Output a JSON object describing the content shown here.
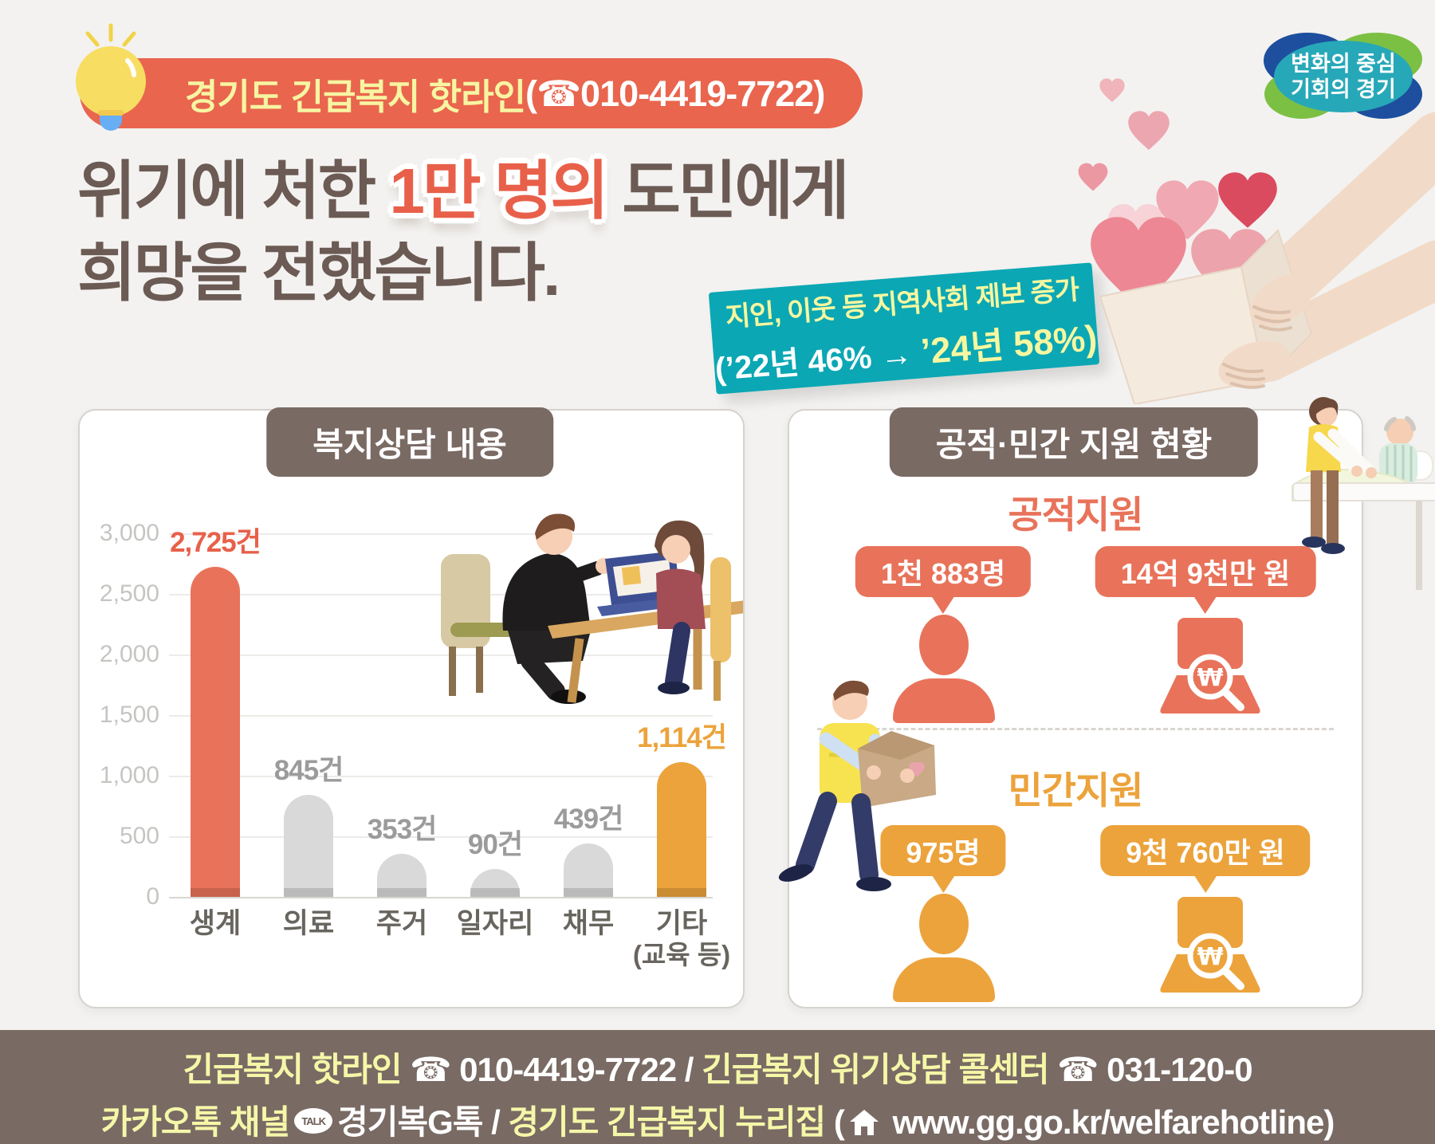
{
  "page": {
    "background": "#f3f2f0",
    "accent_red": "#e8604a",
    "accent_coral": "#e8735a",
    "accent_amber": "#eca33c",
    "teal": "#0ba7b4",
    "brown": "#7a6a64"
  },
  "badge": {
    "title": "경기도 긴급복지 핫라인",
    "phone": "(☎010-4419-7722)"
  },
  "logo": {
    "line1": "변화의 중심",
    "line2": "기회의 경기"
  },
  "headline": {
    "line1_pre": "위기에 처한 ",
    "line1_highlight": "1만 명의",
    "line1_post": " 도민에게",
    "line2": "희망을 전했습니다."
  },
  "ribbon": {
    "line1": "지인, 이웃 등 지역사회 제보 증가",
    "line2_white": "(’22년 46% → ",
    "line2_yellow": "’24년 58%)"
  },
  "chart_card": {
    "title": "복지상담 내용",
    "chart_data": {
      "type": "bar",
      "title": "복지상담 내용",
      "categories": [
        "생계",
        "의료",
        "주거",
        "일자리",
        "채무",
        "기타"
      ],
      "category_notes": [
        "",
        "",
        "",
        "",
        "",
        "(교육 등)"
      ],
      "values": [
        2725,
        845,
        353,
        90,
        439,
        1114
      ],
      "value_labels": [
        "2,725건",
        "845건",
        "353건",
        "90건",
        "439건",
        "1,114건"
      ],
      "bar_colors": [
        "#e8735a",
        "#d9d9d9",
        "#d9d9d9",
        "#d9d9d9",
        "#d9d9d9",
        "#eca33c"
      ],
      "label_colors": [
        "#e8604a",
        "#9b9b9b",
        "#9b9b9b",
        "#9b9b9b",
        "#9b9b9b",
        "#eca33c"
      ],
      "unit": "건",
      "ylim": [
        0,
        3000
      ],
      "ytick_values": [
        0,
        500,
        1000,
        1500,
        2000,
        2500,
        3000
      ],
      "ytick_labels": [
        "0",
        "500",
        "1,000",
        "1,500",
        "2,000",
        "2,500",
        "3,000"
      ],
      "grid": true,
      "legend": false
    }
  },
  "support_card": {
    "title": "공적·민간 지원 현황",
    "sections": [
      {
        "label": "공적지원",
        "accent": "#e8735a",
        "people_badge": "1천 883명",
        "amount_badge": "14억 9천만 원"
      },
      {
        "label": "민간지원",
        "accent": "#eca33c",
        "people_badge": "975명",
        "amount_badge": "9천 760만 원"
      }
    ]
  },
  "footer": {
    "line1": [
      {
        "t": "긴급복지 핫라인 ",
        "c": "y"
      },
      {
        "t": "☎ 010-4419-7722 / ",
        "c": "w"
      },
      {
        "t": "긴급복지 위기상담 콜센터 ",
        "c": "y"
      },
      {
        "t": "☎ 031-120-0",
        "c": "w"
      }
    ],
    "line2": [
      {
        "t": "카카오톡 채널",
        "c": "y"
      },
      {
        "icon": "kakao-talk-icon"
      },
      {
        "t": "경기복G톡 / ",
        "c": "w"
      },
      {
        "t": "경기도 긴급복지 누리집 ",
        "c": "y"
      },
      {
        "t": "(",
        "c": "w"
      },
      {
        "icon": "home-icon"
      },
      {
        "t": " www.gg.go.kr/welfarehotline)",
        "c": "w"
      }
    ],
    "kakao_icon_text": "TALK"
  }
}
